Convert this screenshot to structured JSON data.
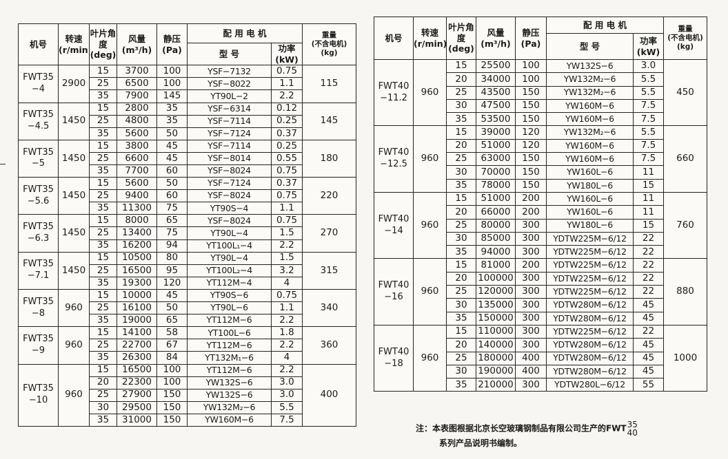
{
  "headers": {
    "model": "机号",
    "speed": "转速",
    "speed_unit": "(r/min)",
    "angle": "叶片角度",
    "angle_unit": "(deg)",
    "flow": "风量",
    "flow_unit": "(m³/h)",
    "pressure": "静压",
    "pressure_unit": "(Pa)",
    "motor_group": "配 用 电 机",
    "motor_type": "型 号",
    "power": "功率",
    "power_unit": "(kW)",
    "weight": "重量",
    "weight_note": "(不含电机)",
    "weight_unit": "(kg)"
  },
  "left_table": [
    {
      "model": "FWT35 −4",
      "speed": "2900",
      "weight": "115",
      "rows": [
        {
          "angle": "15",
          "flow": "3700",
          "pressure": "100",
          "motor": "YSF−7132",
          "power": "0.75"
        },
        {
          "angle": "25",
          "flow": "6500",
          "pressure": "100",
          "motor": "YSF−8022",
          "power": "1.1"
        },
        {
          "angle": "35",
          "flow": "7900",
          "pressure": "145",
          "motor": "YT90L−2",
          "power": "2.2"
        }
      ]
    },
    {
      "model": "FWT35 −4.5",
      "speed": "1450",
      "weight": "145",
      "rows": [
        {
          "angle": "15",
          "flow": "2800",
          "pressure": "35",
          "motor": "YSF−6314",
          "power": "0.12"
        },
        {
          "angle": "25",
          "flow": "4800",
          "pressure": "35",
          "motor": "YSF−7114",
          "power": "0.25"
        },
        {
          "angle": "35",
          "flow": "5600",
          "pressure": "50",
          "motor": "YSF−7124",
          "power": "0.37"
        }
      ]
    },
    {
      "model": "FWT35 −5",
      "speed": "1450",
      "weight": "180",
      "rows": [
        {
          "angle": "15",
          "flow": "3800",
          "pressure": "45",
          "motor": "YSF−7114",
          "power": "0.25"
        },
        {
          "angle": "25",
          "flow": "6600",
          "pressure": "45",
          "motor": "YSF−8014",
          "power": "0.55"
        },
        {
          "angle": "35",
          "flow": "7700",
          "pressure": "60",
          "motor": "YSF−8024",
          "power": "0.75"
        }
      ]
    },
    {
      "model": "FWT35 −5.6",
      "speed": "1450",
      "weight": "220",
      "rows": [
        {
          "angle": "15",
          "flow": "5600",
          "pressure": "50",
          "motor": "YSF−7124",
          "power": "0.37"
        },
        {
          "angle": "25",
          "flow": "9400",
          "pressure": "60",
          "motor": "YSF−8024",
          "power": "0.75"
        },
        {
          "angle": "35",
          "flow": "11300",
          "pressure": "75",
          "motor": "YT90S−4",
          "power": "1.1"
        }
      ]
    },
    {
      "model": "FWT35 −6.3",
      "speed": "1450",
      "weight": "270",
      "rows": [
        {
          "angle": "15",
          "flow": "8000",
          "pressure": "65",
          "motor": "YSF−8024",
          "power": "0.75"
        },
        {
          "angle": "25",
          "flow": "13400",
          "pressure": "75",
          "motor": "YT90L−4",
          "power": "1.5"
        },
        {
          "angle": "35",
          "flow": "16200",
          "pressure": "94",
          "motor": "YT100L₁−4",
          "power": "2.2"
        }
      ]
    },
    {
      "model": "FWT35 −7.1",
      "speed": "1450",
      "weight": "315",
      "rows": [
        {
          "angle": "15",
          "flow": "10500",
          "pressure": "80",
          "motor": "YT90L−4",
          "power": "1.5"
        },
        {
          "angle": "25",
          "flow": "16500",
          "pressure": "95",
          "motor": "YT100L₂−4",
          "power": "3.2"
        },
        {
          "angle": "35",
          "flow": "19300",
          "pressure": "120",
          "motor": "YT112M−4",
          "power": "4"
        }
      ]
    },
    {
      "model": "FWT35 −8",
      "speed": "960",
      "weight": "340",
      "rows": [
        {
          "angle": "15",
          "flow": "10000",
          "pressure": "45",
          "motor": "YT90S−6",
          "power": "0.75"
        },
        {
          "angle": "25",
          "flow": "16100",
          "pressure": "50",
          "motor": "YT90L−6",
          "power": "1.1"
        },
        {
          "angle": "35",
          "flow": "19000",
          "pressure": "65",
          "motor": "YT112M−6",
          "power": "2.2"
        }
      ]
    },
    {
      "model": "FWT35 −9",
      "speed": "960",
      "weight": "360",
      "rows": [
        {
          "angle": "15",
          "flow": "14100",
          "pressure": "58",
          "motor": "YT100L−6",
          "power": "1.8"
        },
        {
          "angle": "25",
          "flow": "22700",
          "pressure": "67",
          "motor": "YT112M−6",
          "power": "2.2"
        },
        {
          "angle": "35",
          "flow": "26300",
          "pressure": "84",
          "motor": "YT132M₁−6",
          "power": "4"
        }
      ]
    },
    {
      "model": "FWT35 −10",
      "speed": "960",
      "weight": "400",
      "rows": [
        {
          "angle": "15",
          "flow": "16500",
          "pressure": "100",
          "motor": "YT112M−6",
          "power": "2.2"
        },
        {
          "angle": "20",
          "flow": "22300",
          "pressure": "100",
          "motor": "YW132S−6",
          "power": "3.0"
        },
        {
          "angle": "25",
          "flow": "27900",
          "pressure": "150",
          "motor": "YW132S−6",
          "power": "3.0"
        },
        {
          "angle": "30",
          "flow": "29500",
          "pressure": "150",
          "motor": "YW132M₂−6",
          "power": "5.5"
        },
        {
          "angle": "35",
          "flow": "31000",
          "pressure": "150",
          "motor": "YW160M−6",
          "power": "7.5"
        }
      ]
    }
  ],
  "right_table": [
    {
      "model": "FWT40 −11.2",
      "speed": "960",
      "weight": "450",
      "rows": [
        {
          "angle": "15",
          "flow": "25500",
          "pressure": "100",
          "motor": "YW132S−6",
          "power": "3.0"
        },
        {
          "angle": "20",
          "flow": "34000",
          "pressure": "100",
          "motor": "YW132M₂−6",
          "power": "5.5"
        },
        {
          "angle": "25",
          "flow": "43500",
          "pressure": "150",
          "motor": "YW132M₂−6",
          "power": "5.5"
        },
        {
          "angle": "30",
          "flow": "47500",
          "pressure": "150",
          "motor": "YW160M−6",
          "power": "7.5"
        },
        {
          "angle": "35",
          "flow": "53500",
          "pressure": "150",
          "motor": "YW160M−6",
          "power": "7.5"
        }
      ]
    },
    {
      "model": "FWT40 −12.5",
      "speed": "960",
      "weight": "660",
      "rows": [
        {
          "angle": "15",
          "flow": "39000",
          "pressure": "120",
          "motor": "YW132M₂−6",
          "power": "5.5"
        },
        {
          "angle": "20",
          "flow": "51000",
          "pressure": "120",
          "motor": "YW160M−6",
          "power": "7.5"
        },
        {
          "angle": "25",
          "flow": "63000",
          "pressure": "150",
          "motor": "YW160M−6",
          "power": "7.5"
        },
        {
          "angle": "30",
          "flow": "70000",
          "pressure": "150",
          "motor": "YW160L−6",
          "power": "11"
        },
        {
          "angle": "35",
          "flow": "78000",
          "pressure": "150",
          "motor": "YW180L−6",
          "power": "15"
        }
      ]
    },
    {
      "model": "FWT40 −14",
      "speed": "960",
      "weight": "760",
      "rows": [
        {
          "angle": "15",
          "flow": "51000",
          "pressure": "200",
          "motor": "YW160L−6",
          "power": "11"
        },
        {
          "angle": "20",
          "flow": "66000",
          "pressure": "200",
          "motor": "YW160L−6",
          "power": "11"
        },
        {
          "angle": "25",
          "flow": "80000",
          "pressure": "300",
          "motor": "YW180L−6",
          "power": "15"
        },
        {
          "angle": "30",
          "flow": "85000",
          "pressure": "300",
          "motor": "YDTW225M−6/12",
          "power": "22"
        },
        {
          "angle": "35",
          "flow": "94000",
          "pressure": "300",
          "motor": "YDTW225M−6/12",
          "power": "22"
        }
      ]
    },
    {
      "model": "FWT40 −16",
      "speed": "960",
      "weight": "880",
      "rows": [
        {
          "angle": "15",
          "flow": "81000",
          "pressure": "200",
          "motor": "YDTW225M−6/12",
          "power": "22"
        },
        {
          "angle": "20",
          "flow": "100000",
          "pressure": "300",
          "motor": "YDTW225M−6/12",
          "power": "22"
        },
        {
          "angle": "25",
          "flow": "120000",
          "pressure": "300",
          "motor": "YDTW225M−6/12",
          "power": "22"
        },
        {
          "angle": "30",
          "flow": "135000",
          "pressure": "300",
          "motor": "YDTW280M−6/12",
          "power": "45"
        },
        {
          "angle": "35",
          "flow": "150000",
          "pressure": "300",
          "motor": "YDTW280M−6/12",
          "power": "45"
        }
      ]
    },
    {
      "model": "FWT40 −18",
      "speed": "960",
      "weight": "1000",
      "rows": [
        {
          "angle": "15",
          "flow": "110000",
          "pressure": "300",
          "motor": "YDTW225M−6/12",
          "power": "22"
        },
        {
          "angle": "20",
          "flow": "140000",
          "pressure": "300",
          "motor": "YDTW280M−6/12",
          "power": "45"
        },
        {
          "angle": "25",
          "flow": "180000",
          "pressure": "400",
          "motor": "YDTW280M−6/12",
          "power": "45"
        },
        {
          "angle": "30",
          "flow": "190000",
          "pressure": "400",
          "motor": "YDTW280M−6/12",
          "power": "45"
        },
        {
          "angle": "35",
          "flow": "210000",
          "pressure": "300",
          "motor": "YDTW280L−6/12",
          "power": "55"
        }
      ]
    }
  ],
  "note": {
    "line1": "注：本表图根据北京长空玻璃钢制品有限公司生产的FWT",
    "frac_top": "35",
    "frac_bottom": "40",
    "line2": "系列产品说明书编制。"
  }
}
